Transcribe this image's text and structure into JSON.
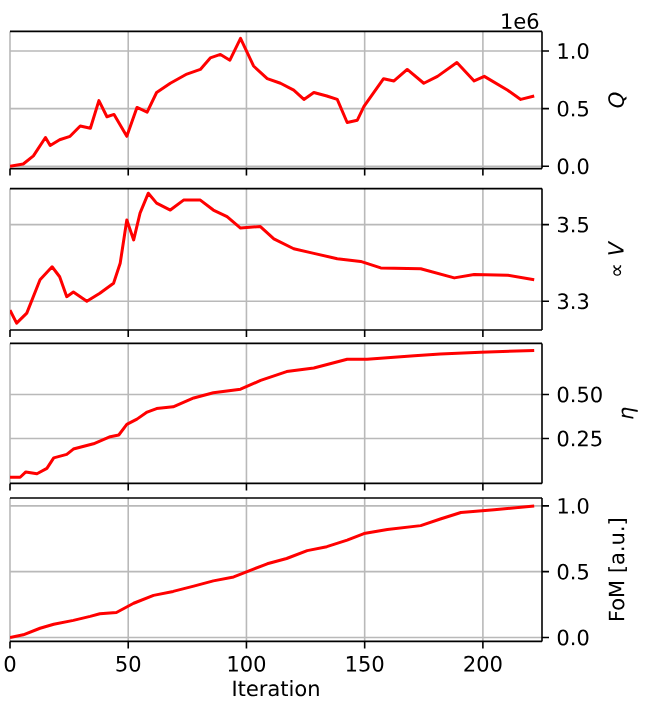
{
  "chart_data": [
    {
      "type": "line",
      "ylabel": "*Q*",
      "annotations": [
        "1e6"
      ],
      "xlim": [
        0,
        225
      ],
      "xticks": [
        0,
        50,
        100,
        150,
        200
      ],
      "ylim": [
        -0.02,
        1.17
      ],
      "yticks": [
        {
          "value": 0,
          "label": "0.0"
        },
        0.5,
        {
          "value": 1,
          "label": "1.0"
        }
      ],
      "grid": true,
      "tick_labels": "y",
      "series": [
        {
          "color": "#ff0000",
          "x": [
            0,
            5.6,
            9.9,
            15,
            17,
            21,
            25.4,
            29.7,
            34,
            37.6,
            41,
            44,
            49.4,
            53.7,
            58,
            62,
            67.8,
            74.8,
            80.5,
            84.7,
            89,
            93,
            97.5,
            103,
            108.8,
            114.4,
            120,
            124.3,
            128.5,
            134,
            138.4,
            142.6,
            146.9,
            149.7,
            158,
            162.4,
            168,
            175,
            180.8,
            189,
            196.3,
            200.6,
            210.5,
            216,
            221.7
          ],
          "values": [
            0,
            0.02,
            0.09,
            0.25,
            0.18,
            0.23,
            0.26,
            0.35,
            0.33,
            0.57,
            0.43,
            0.45,
            0.26,
            0.51,
            0.47,
            0.64,
            0.72,
            0.8,
            0.84,
            0.94,
            0.97,
            0.92,
            1.11,
            0.87,
            0.76,
            0.72,
            0.66,
            0.58,
            0.64,
            0.61,
            0.58,
            0.38,
            0.4,
            0.52,
            0.76,
            0.74,
            0.84,
            0.72,
            0.78,
            0.9,
            0.74,
            0.78,
            0.66,
            0.58,
            0.61
          ]
        }
      ]
    },
    {
      "type": "line",
      "ylabel": "∝ *V*",
      "xlim": [
        0,
        225
      ],
      "xticks": [
        0,
        50,
        100,
        150,
        200
      ],
      "ylim": [
        3.225,
        3.594
      ],
      "yticks": [
        3.3,
        3.5
      ],
      "grid": true,
      "tick_labels": "y",
      "series": [
        {
          "color": "#ff0000",
          "x": [
            0,
            2.8,
            7.1,
            12.7,
            17.8,
            21,
            24,
            26.8,
            32.5,
            38,
            43.8,
            46.6,
            49.4,
            52.3,
            55,
            58.5,
            62,
            67.8,
            73.4,
            80.5,
            86,
            91.8,
            97.5,
            105.9,
            111.6,
            120,
            128.5,
            138.4,
            148.3,
            156.8,
            173.7,
            187.9,
            196.3,
            210.5,
            221.7
          ],
          "values": [
            3.277,
            3.243,
            3.269,
            3.356,
            3.39,
            3.364,
            3.312,
            3.324,
            3.3,
            3.321,
            3.347,
            3.399,
            3.512,
            3.46,
            3.53,
            3.582,
            3.556,
            3.538,
            3.564,
            3.564,
            3.538,
            3.521,
            3.491,
            3.495,
            3.463,
            3.437,
            3.425,
            3.411,
            3.404,
            3.387,
            3.385,
            3.361,
            3.37,
            3.368,
            3.356
          ]
        }
      ]
    },
    {
      "type": "line",
      "ylabel": "*η*",
      "xlim": [
        0,
        225
      ],
      "xticks": [
        0,
        50,
        100,
        150,
        200
      ],
      "ylim": [
        -0.005,
        0.79
      ],
      "yticks": [
        0.25,
        {
          "value": 0.5,
          "label": "0.50"
        }
      ],
      "grid": true,
      "tick_labels": "y",
      "series": [
        {
          "color": "#ff0000",
          "x": [
            0,
            4.3,
            6.7,
            11.4,
            15.6,
            18.5,
            24,
            26.8,
            35.3,
            42.4,
            46,
            49.4,
            53.7,
            58,
            62,
            69,
            77.7,
            86,
            97.5,
            106,
            117,
            128.5,
            142.6,
            151,
            171,
            182,
            199,
            221.7
          ],
          "values": [
            0.03,
            0.03,
            0.06,
            0.05,
            0.08,
            0.14,
            0.16,
            0.19,
            0.22,
            0.26,
            0.27,
            0.33,
            0.36,
            0.4,
            0.42,
            0.43,
            0.48,
            0.51,
            0.53,
            0.58,
            0.63,
            0.65,
            0.7,
            0.7,
            0.72,
            0.73,
            0.74,
            0.75
          ]
        }
      ]
    },
    {
      "type": "line",
      "ylabel": "FoM [a.u.]",
      "xlabel": "Iteration",
      "xlim": [
        0,
        225
      ],
      "xticks": [
        0,
        50,
        100,
        150,
        200
      ],
      "ylim": [
        -0.03,
        1.06
      ],
      "yticks": [
        {
          "value": 0,
          "label": "0.0"
        },
        0.5,
        {
          "value": 1,
          "label": "1.0"
        }
      ],
      "grid": true,
      "series": [
        {
          "color": "#ff0000",
          "x": [
            0,
            5.6,
            12.7,
            18.5,
            26.8,
            33.9,
            38,
            45,
            52.3,
            60.7,
            69,
            77.7,
            86,
            94.6,
            103,
            108.8,
            117,
            125.7,
            134,
            142.6,
            149.7,
            159.6,
            173.7,
            182,
            190.7,
            204.8,
            221.7
          ],
          "values": [
            0,
            0.02,
            0.07,
            0.1,
            0.13,
            0.16,
            0.18,
            0.19,
            0.26,
            0.32,
            0.35,
            0.39,
            0.43,
            0.46,
            0.52,
            0.56,
            0.6,
            0.66,
            0.69,
            0.74,
            0.79,
            0.82,
            0.85,
            0.9,
            0.95,
            0.97,
            1.0
          ]
        }
      ]
    }
  ]
}
